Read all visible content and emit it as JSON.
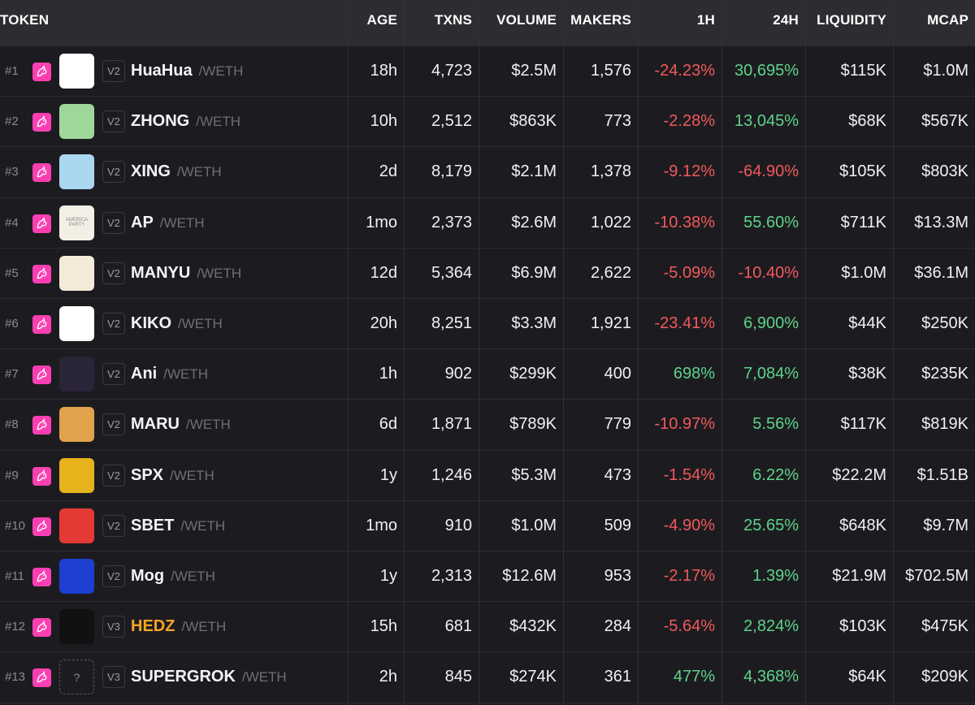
{
  "columns": {
    "token": "TOKEN",
    "age": "AGE",
    "txns": "TXNS",
    "volume": "VOLUME",
    "makers": "MAKERS",
    "h1": "1H",
    "h24": "24H",
    "liquidity": "LIQUIDITY",
    "mcap": "MCAP"
  },
  "rows": [
    {
      "rank": "#1",
      "version": "V2",
      "name": "HuaHua",
      "pair": "/WETH",
      "age": "18h",
      "txns": "4,723",
      "volume": "$2.5M",
      "makers": "1,576",
      "h1": "-24.23%",
      "h24": "30,695%",
      "liquidity": "$115K",
      "mcap": "$1.0M",
      "h1_dir": "neg",
      "h24_dir": "pos",
      "avatar": "panda-avatar-icon",
      "avatar_bg": "#ffffff"
    },
    {
      "rank": "#2",
      "version": "V2",
      "name": "ZHONG",
      "pair": "/WETH",
      "age": "10h",
      "txns": "2,512",
      "volume": "$863K",
      "makers": "773",
      "h1": "-2.28%",
      "h24": "13,045%",
      "liquidity": "$68K",
      "mcap": "$567K",
      "h1_dir": "neg",
      "h24_dir": "pos",
      "avatar": "monkey-avatar-icon",
      "avatar_bg": "#9fd79a"
    },
    {
      "rank": "#3",
      "version": "V2",
      "name": "XING",
      "pair": "/WETH",
      "age": "2d",
      "txns": "8,179",
      "volume": "$2.1M",
      "makers": "1,378",
      "h1": "-9.12%",
      "h24": "-64.90%",
      "liquidity": "$105K",
      "mcap": "$803K",
      "h1_dir": "neg",
      "h24_dir": "neg",
      "avatar": "ape-avatar-icon",
      "avatar_bg": "#a9d7ef"
    },
    {
      "rank": "#4",
      "version": "V2",
      "name": "AP",
      "pair": "/WETH",
      "age": "1mo",
      "txns": "2,373",
      "volume": "$2.6M",
      "makers": "1,022",
      "h1": "-10.38%",
      "h24": "55.60%",
      "liquidity": "$711K",
      "mcap": "$13.3M",
      "h1_dir": "neg",
      "h24_dir": "pos",
      "avatar": "america-party-logo-icon",
      "avatar_bg": "#f3efe4",
      "avatar_text": "AMERICA PARTY"
    },
    {
      "rank": "#5",
      "version": "V2",
      "name": "MANYU",
      "pair": "/WETH",
      "age": "12d",
      "txns": "5,364",
      "volume": "$6.9M",
      "makers": "2,622",
      "h1": "-5.09%",
      "h24": "-10.40%",
      "liquidity": "$1.0M",
      "mcap": "$36.1M",
      "h1_dir": "neg",
      "h24_dir": "neg",
      "avatar": "shiba-dog-avatar-icon",
      "avatar_bg": "#f4ead8"
    },
    {
      "rank": "#6",
      "version": "V2",
      "name": "KIKO",
      "pair": "/WETH",
      "age": "20h",
      "txns": "8,251",
      "volume": "$3.3M",
      "makers": "1,921",
      "h1": "-23.41%",
      "h24": "6,900%",
      "liquidity": "$44K",
      "mcap": "$250K",
      "h1_dir": "neg",
      "h24_dir": "pos",
      "avatar": "dachshund-avatar-icon",
      "avatar_bg": "#ffffff"
    },
    {
      "rank": "#7",
      "version": "V2",
      "name": "Ani",
      "pair": "/WETH",
      "age": "1h",
      "txns": "902",
      "volume": "$299K",
      "makers": "400",
      "h1": "698%",
      "h24": "7,084%",
      "liquidity": "$38K",
      "mcap": "$235K",
      "h1_dir": "pos",
      "h24_dir": "pos",
      "avatar": "anime-girl-avatar-icon",
      "avatar_bg": "#2a2438"
    },
    {
      "rank": "#8",
      "version": "V2",
      "name": "MARU",
      "pair": "/WETH",
      "age": "6d",
      "txns": "1,871",
      "volume": "$789K",
      "makers": "779",
      "h1": "-10.97%",
      "h24": "5.56%",
      "liquidity": "$117K",
      "mcap": "$819K",
      "h1_dir": "neg",
      "h24_dir": "pos",
      "avatar": "shiba-coin-avatar-icon",
      "avatar_bg": "#e0a24a"
    },
    {
      "rank": "#9",
      "version": "V2",
      "name": "SPX",
      "pair": "/WETH",
      "age": "1y",
      "txns": "1,246",
      "volume": "$5.3M",
      "makers": "473",
      "h1": "-1.54%",
      "h24": "6.22%",
      "liquidity": "$22.2M",
      "mcap": "$1.51B",
      "h1_dir": "neg",
      "h24_dir": "pos",
      "avatar": "spx-coin-avatar-icon",
      "avatar_bg": "#e8b21d"
    },
    {
      "rank": "#10",
      "version": "V2",
      "name": "SBET",
      "pair": "/WETH",
      "age": "1mo",
      "txns": "910",
      "volume": "$1.0M",
      "makers": "509",
      "h1": "-4.90%",
      "h24": "25.65%",
      "liquidity": "$648K",
      "mcap": "$9.7M",
      "h1_dir": "neg",
      "h24_dir": "pos",
      "avatar": "sbet-logo-icon",
      "avatar_bg": "#e53935"
    },
    {
      "rank": "#11",
      "version": "V2",
      "name": "Mog",
      "pair": "/WETH",
      "age": "1y",
      "txns": "2,313",
      "volume": "$12.6M",
      "makers": "953",
      "h1": "-2.17%",
      "h24": "1.39%",
      "liquidity": "$21.9M",
      "mcap": "$702.5M",
      "h1_dir": "neg",
      "h24_dir": "pos",
      "avatar": "mog-cat-avatar-icon",
      "avatar_bg": "#1f3fd1"
    },
    {
      "rank": "#12",
      "version": "V3",
      "name": "HEDZ",
      "pair": "/WETH",
      "age": "15h",
      "txns": "681",
      "volume": "$432K",
      "makers": "284",
      "h1": "-5.64%",
      "h24": "2,824%",
      "liquidity": "$103K",
      "mcap": "$475K",
      "h1_dir": "neg",
      "h24_dir": "pos",
      "avatar": "hedz-avatar-icon",
      "avatar_bg": "#111111",
      "highlight": true
    },
    {
      "rank": "#13",
      "version": "V3",
      "name": "SUPERGROK",
      "pair": "/WETH",
      "age": "2h",
      "txns": "845",
      "volume": "$274K",
      "makers": "361",
      "h1": "477%",
      "h24": "4,368%",
      "liquidity": "$64K",
      "mcap": "$209K",
      "h1_dir": "pos",
      "h24_dir": "pos",
      "avatar": "placeholder-avatar-icon",
      "avatar_bg": "transparent",
      "avatar_text": "?"
    }
  ]
}
